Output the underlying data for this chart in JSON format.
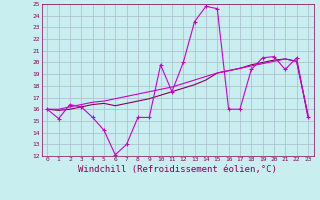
{
  "background_color": "#c8eef0",
  "grid_color": "#aabbcc",
  "line_color_magenta": "#cc00cc",
  "line_color_dark": "#880055",
  "xlim": [
    -0.5,
    23.5
  ],
  "ylim": [
    12,
    25
  ],
  "xlabel": "Windchill (Refroidissement éolien,°C)",
  "xlabel_fontsize": 6.5,
  "xtick_labels": [
    "0",
    "1",
    "2",
    "3",
    "4",
    "5",
    "6",
    "7",
    "8",
    "9",
    "10",
    "11",
    "12",
    "13",
    "14",
    "15",
    "16",
    "17",
    "18",
    "19",
    "20",
    "21",
    "22",
    "23"
  ],
  "ytick_labels": [
    "12",
    "13",
    "14",
    "15",
    "16",
    "17",
    "18",
    "19",
    "20",
    "21",
    "22",
    "23",
    "24",
    "25"
  ],
  "series1_x": [
    0,
    1,
    2,
    3,
    4,
    5,
    6,
    7,
    8,
    9,
    10,
    11,
    12,
    13,
    14,
    15,
    16,
    17,
    18,
    19,
    20,
    21,
    22,
    23
  ],
  "series1_y": [
    16.0,
    15.2,
    16.4,
    16.2,
    15.3,
    14.2,
    12.1,
    13.0,
    15.3,
    15.3,
    19.8,
    17.5,
    20.0,
    23.5,
    24.8,
    24.6,
    16.0,
    16.0,
    19.4,
    20.4,
    20.5,
    19.4,
    20.4,
    15.3
  ],
  "series2_x": [
    0,
    1,
    2,
    3,
    4,
    5,
    6,
    7,
    8,
    9,
    10,
    11,
    12,
    13,
    14,
    15,
    16,
    17,
    18,
    19,
    20,
    21,
    22,
    23
  ],
  "series2_y": [
    16.0,
    15.9,
    16.0,
    16.2,
    16.4,
    16.5,
    16.3,
    16.5,
    16.7,
    16.9,
    17.2,
    17.5,
    17.8,
    18.1,
    18.5,
    19.1,
    19.3,
    19.5,
    19.8,
    20.0,
    20.2,
    20.3,
    20.1,
    15.5
  ],
  "series3_x": [
    0,
    1,
    2,
    3,
    4,
    5,
    6,
    7,
    8,
    9,
    10,
    11,
    12,
    13,
    14,
    15,
    16,
    17,
    18,
    19,
    20,
    21,
    22,
    23
  ],
  "series3_y": [
    16.0,
    16.0,
    16.2,
    16.4,
    16.6,
    16.7,
    16.9,
    17.1,
    17.3,
    17.5,
    17.7,
    17.9,
    18.2,
    18.5,
    18.8,
    19.1,
    19.3,
    19.5,
    19.7,
    19.9,
    20.1,
    20.3,
    20.1,
    15.5
  ]
}
